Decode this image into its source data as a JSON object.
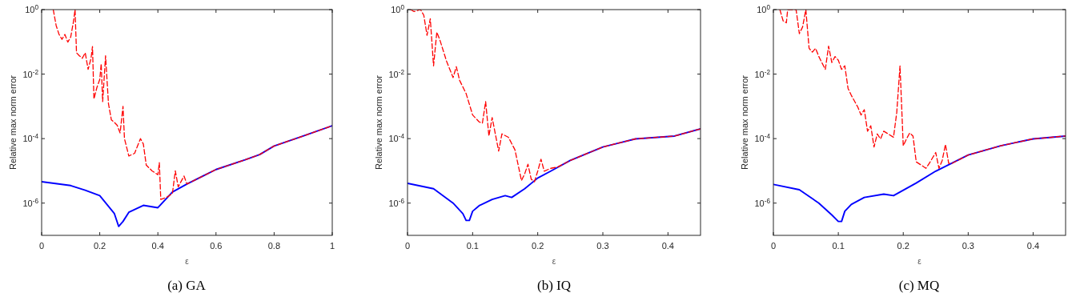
{
  "chart_data": [
    {
      "type": "line",
      "title": "(a) GA",
      "xlabel": "ε",
      "ylabel": "Relative max norm error",
      "log": "y",
      "xlim": [
        0,
        1
      ],
      "xticks": [
        0,
        0.2,
        0.4,
        0.6,
        0.8,
        1
      ],
      "ylim": [
        1e-07,
        1
      ],
      "yticks": [
        {
          "value": 1e-06,
          "label": "10$^{-6}$"
        },
        {
          "value": 0.0001,
          "label": "10$^{-4}$"
        },
        {
          "value": 0.01,
          "label": "10$^{-2}$"
        },
        {
          "value": 1,
          "label": "10$^{0}$"
        }
      ],
      "grid": false,
      "series": [
        {
          "color": "#ff0000",
          "line_style": "dashed",
          "x": [
            0.04,
            0.05,
            0.06,
            0.07,
            0.08,
            0.09,
            0.1,
            0.11,
            0.115,
            0.12,
            0.13,
            0.14,
            0.15,
            0.16,
            0.17,
            0.175,
            0.18,
            0.19,
            0.2,
            0.205,
            0.21,
            0.22,
            0.23,
            0.24,
            0.25,
            0.26,
            0.27,
            0.28,
            0.285,
            0.3,
            0.32,
            0.34,
            0.35,
            0.36,
            0.38,
            0.4,
            0.405,
            0.41,
            0.43,
            0.45,
            0.46,
            0.47,
            0.48,
            0.49,
            0.5,
            0.6,
            0.7,
            0.75,
            0.8,
            0.9,
            1.0
          ],
          "values": [
            1,
            0.32,
            0.17,
            0.12,
            0.17,
            0.098,
            0.14,
            0.45,
            1,
            0.046,
            0.037,
            0.031,
            0.046,
            0.014,
            0.031,
            0.072,
            0.0017,
            0.0038,
            0.0068,
            0.021,
            0.0014,
            0.037,
            0.0012,
            0.00038,
            0.00032,
            0.00026,
            0.00015,
            0.001,
            0.0001,
            2.9e-05,
            3.5e-05,
            0.0001,
            6.8e-05,
            1.5e-05,
            1e-05,
            7.6e-06,
            1.8e-05,
            1.3e-06,
            1.5e-06,
            2e-06,
            1e-05,
            3.2e-06,
            4.7e-06,
            6.9e-06,
            3.9e-06,
            1.1e-05,
            2.2e-05,
            3.2e-05,
            5.9e-05,
            0.00012,
            0.00025
          ]
        },
        {
          "color": "#0000ff",
          "line_style": "solid",
          "x": [
            0,
            0.1,
            0.15,
            0.2,
            0.25,
            0.265,
            0.28,
            0.3,
            0.35,
            0.4,
            0.45,
            0.5,
            0.6,
            0.7,
            0.75,
            0.8,
            0.9,
            1.0
          ],
          "values": [
            4.6e-06,
            3.5e-06,
            2.5e-06,
            1.7e-06,
            4.8e-07,
            1.9e-07,
            2.7e-07,
            5.2e-07,
            8.5e-07,
            7.2e-07,
            2.2e-06,
            3.9e-06,
            1.1e-05,
            2.2e-05,
            3.2e-05,
            5.9e-05,
            0.00012,
            0.00025
          ]
        }
      ]
    },
    {
      "type": "line",
      "title": "(b) IQ",
      "xlabel": "ε",
      "ylabel": "Relative max norm error",
      "log": "y",
      "xlim": [
        0,
        0.45
      ],
      "xticks": [
        0,
        0.1,
        0.2,
        0.3,
        0.4
      ],
      "ylim": [
        1e-07,
        1
      ],
      "yticks": [
        {
          "value": 1e-06,
          "label": "10$^{-6}$"
        },
        {
          "value": 0.0001,
          "label": "10$^{-4}$"
        },
        {
          "value": 0.01,
          "label": "10$^{-2}$"
        },
        {
          "value": 1,
          "label": "10$^{0}$"
        }
      ],
      "grid": false,
      "series": [
        {
          "color": "#ff0000",
          "line_style": "dashed",
          "x": [
            0.005,
            0.01,
            0.02,
            0.025,
            0.03,
            0.035,
            0.04,
            0.045,
            0.05,
            0.06,
            0.07,
            0.075,
            0.08,
            0.09,
            0.1,
            0.11,
            0.115,
            0.12,
            0.125,
            0.13,
            0.14,
            0.145,
            0.155,
            0.165,
            0.175,
            0.18,
            0.185,
            0.19,
            0.195,
            0.2,
            0.205,
            0.21,
            0.22,
            0.23,
            0.25,
            0.3,
            0.35,
            0.41,
            0.45
          ],
          "values": [
            1,
            0.87,
            1,
            0.67,
            0.16,
            0.52,
            0.018,
            0.2,
            0.11,
            0.025,
            0.0078,
            0.017,
            0.0064,
            0.0025,
            0.00054,
            0.00033,
            0.0003,
            0.0014,
            0.00012,
            0.00045,
            4.1e-05,
            0.00014,
            0.00011,
            4.5e-05,
            5e-06,
            8.1e-06,
            1.6e-05,
            5.5e-06,
            4.6e-06,
            9.8e-06,
            2.3e-05,
            9.8e-06,
            1.2e-05,
            1.3e-05,
            2.1e-05,
            5.5e-05,
            9.8e-05,
            0.00012,
            0.0002
          ]
        },
        {
          "color": "#0000ff",
          "line_style": "solid",
          "x": [
            0,
            0.04,
            0.07,
            0.085,
            0.09,
            0.095,
            0.1,
            0.11,
            0.13,
            0.15,
            0.16,
            0.18,
            0.2,
            0.22,
            0.25,
            0.3,
            0.35,
            0.41,
            0.45
          ],
          "values": [
            4.1e-06,
            2.8e-06,
            1e-06,
            4.7e-07,
            2.9e-07,
            2.9e-07,
            5.6e-07,
            8.3e-07,
            1.3e-06,
            1.7e-06,
            1.5e-06,
            2.8e-06,
            6e-06,
            9.8e-06,
            2.1e-05,
            5.5e-05,
            9.8e-05,
            0.00012,
            0.0002
          ]
        }
      ]
    },
    {
      "type": "line",
      "title": "(c) MQ",
      "xlabel": "ε",
      "ylabel": "Relative max norm error",
      "log": "y",
      "xlim": [
        0,
        0.45
      ],
      "xticks": [
        0,
        0.1,
        0.2,
        0.3,
        0.4
      ],
      "ylim": [
        1e-07,
        1
      ],
      "yticks": [
        {
          "value": 1e-06,
          "label": "10$^{-6}$"
        },
        {
          "value": 0.0001,
          "label": "10$^{-4}$"
        },
        {
          "value": 0.01,
          "label": "10$^{-2}$"
        },
        {
          "value": 1,
          "label": "10$^{0}$"
        }
      ],
      "grid": false,
      "series": [
        {
          "color": "#ff0000",
          "line_style": "dashed",
          "x": [
            0.01,
            0.015,
            0.02,
            0.022,
            0.035,
            0.04,
            0.045,
            0.05,
            0.055,
            0.06,
            0.065,
            0.07,
            0.08,
            0.085,
            0.09,
            0.095,
            0.1,
            0.105,
            0.11,
            0.115,
            0.12,
            0.13,
            0.135,
            0.14,
            0.145,
            0.15,
            0.155,
            0.16,
            0.165,
            0.17,
            0.185,
            0.19,
            0.195,
            0.2,
            0.205,
            0.21,
            0.215,
            0.22,
            0.23,
            0.235,
            0.24,
            0.25,
            0.255,
            0.26,
            0.265,
            0.27,
            0.275,
            0.3,
            0.35,
            0.4,
            0.45
          ],
          "values": [
            1,
            0.45,
            0.39,
            1,
            1,
            0.18,
            0.29,
            1,
            0.063,
            0.048,
            0.063,
            0.035,
            0.014,
            0.074,
            0.023,
            0.035,
            0.027,
            0.014,
            0.018,
            0.0036,
            0.0022,
            0.00095,
            0.00054,
            0.00079,
            0.00017,
            0.00025,
            5.5e-05,
            0.00014,
            9.8e-05,
            0.00017,
            0.00011,
            0.00065,
            0.018,
            6e-05,
            9.8e-05,
            0.00015,
            0.00012,
            1.9e-05,
            1.4e-05,
            1.2e-05,
            1.7e-05,
            3.7e-05,
            1.2e-05,
            2.1e-05,
            6.6e-05,
            1.7e-05,
            1.7e-05,
            3.1e-05,
            6e-05,
            9.8e-05,
            0.00012
          ]
        },
        {
          "color": "#0000ff",
          "line_style": "solid",
          "x": [
            0,
            0.04,
            0.07,
            0.09,
            0.1,
            0.105,
            0.11,
            0.12,
            0.14,
            0.17,
            0.185,
            0.2,
            0.22,
            0.25,
            0.3,
            0.35,
            0.4,
            0.45
          ],
          "values": [
            3.8e-06,
            2.6e-06,
            1e-06,
            4.3e-07,
            2.7e-07,
            2.7e-07,
            5.6e-07,
            9.1e-07,
            1.5e-06,
            1.9e-06,
            1.7e-06,
            2.5e-06,
            4.2e-06,
            9.8e-06,
            3.1e-05,
            6e-05,
            9.8e-05,
            0.00012
          ]
        }
      ]
    }
  ]
}
